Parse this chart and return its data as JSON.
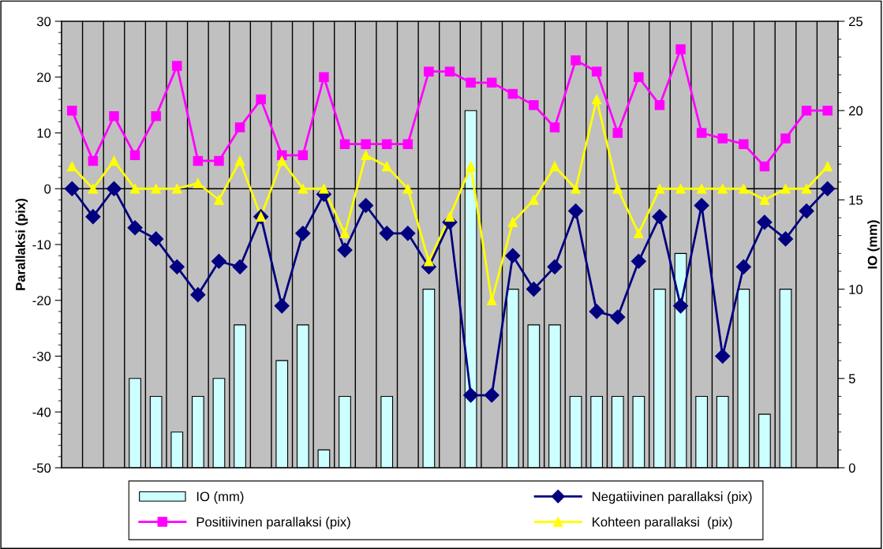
{
  "chart_data": {
    "type": "line",
    "ylabel": "Parallaksi (pix)",
    "y2label": "IO (mm)",
    "categories": [
      null,
      null,
      null,
      null,
      null,
      null,
      null,
      null,
      null,
      null,
      null,
      null,
      null,
      null,
      null,
      null,
      null,
      null,
      null,
      null,
      null,
      null,
      null,
      null,
      null,
      null,
      null,
      null,
      null,
      null,
      null,
      null,
      null,
      null,
      null,
      null,
      null
    ],
    "series": [
      {
        "name": "IO (mm)",
        "type": "bar",
        "axis": "y2",
        "color": "#ccffff",
        "values": [
          null,
          null,
          null,
          5,
          4,
          2,
          4,
          5,
          8,
          null,
          6,
          8,
          1,
          4,
          null,
          4,
          null,
          10,
          null,
          20,
          null,
          10,
          8,
          8,
          4,
          4,
          4,
          4,
          10,
          12,
          4,
          4,
          10,
          3,
          10,
          null,
          null
        ]
      },
      {
        "name": "Negatiivinen parallaksi (pix)",
        "color": "#000080",
        "marker": "diamond",
        "values": [
          0,
          -5,
          0,
          -7,
          -9,
          -14,
          -19,
          -13,
          -14,
          -5,
          -21,
          -8,
          -1,
          -11,
          -3,
          -8,
          -8,
          -14,
          -6,
          -37,
          -37,
          -12,
          -18,
          -14,
          -4,
          -22,
          -23,
          -13,
          -5,
          -21,
          -3,
          -30,
          -14,
          -6,
          -9,
          -4,
          0
        ]
      },
      {
        "name": "Positiivinen parallaksi (pix)",
        "color": "#ff00ff",
        "marker": "square",
        "values": [
          14,
          5,
          13,
          6,
          13,
          22,
          5,
          5,
          11,
          16,
          6,
          6,
          20,
          8,
          8,
          8,
          8,
          21,
          21,
          19,
          19,
          17,
          15,
          11,
          23,
          21,
          10,
          20,
          15,
          25,
          10,
          9,
          8,
          4,
          9,
          14,
          14
        ]
      },
      {
        "name": "Kohteen parallaksi  (pix)",
        "color": "#ffff00",
        "marker": "triangle",
        "values": [
          4,
          0,
          5,
          0,
          0,
          0,
          1,
          -2,
          5,
          -5,
          5,
          0,
          0,
          -8,
          6,
          4,
          0,
          -13,
          -5,
          4,
          -20,
          -6,
          -2,
          4,
          0,
          16,
          0,
          -8,
          0,
          0,
          0,
          0,
          0,
          -2,
          0,
          0,
          4
        ]
      }
    ],
    "ylim": [
      -50,
      30
    ],
    "yticks": [
      -50,
      -40,
      -30,
      -20,
      -10,
      0,
      10,
      20,
      30
    ],
    "y2lim": [
      0,
      25
    ],
    "y2ticks": [
      0,
      5,
      10,
      15,
      20,
      25
    ],
    "ref_lines": [
      {
        "axis": "y",
        "value": 0,
        "color": "#000000"
      }
    ],
    "grid": "x",
    "legend": "bottom",
    "line_style": "solid"
  }
}
